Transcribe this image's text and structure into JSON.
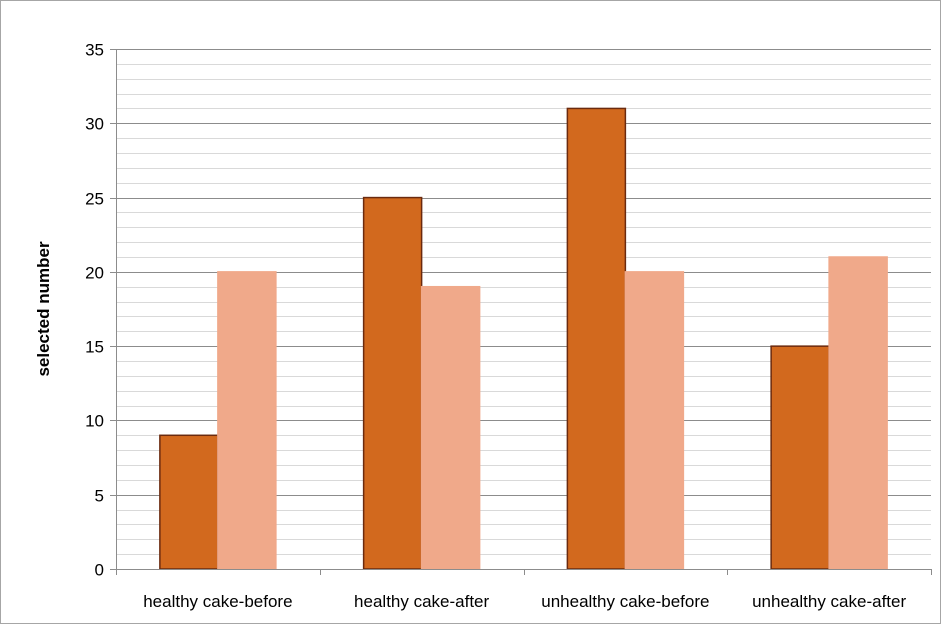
{
  "chart_data": {
    "type": "bar",
    "title": "",
    "xlabel": "",
    "ylabel": "selected number",
    "ylim": [
      0,
      35
    ],
    "yticks": [
      0,
      5,
      10,
      15,
      20,
      25,
      30,
      35
    ],
    "minor_grid_step": 1,
    "grid": true,
    "legend": "none",
    "categories": [
      "healthy cake-before",
      "healthy cake-after",
      "unhealthy cake-before",
      "unhealthy cake-after"
    ],
    "series": [
      {
        "values": [
          9,
          25,
          31,
          15
        ],
        "color": "#d2691e",
        "stroke": "#6b2a0e"
      },
      {
        "values": [
          20,
          19,
          20,
          21
        ],
        "color": "#f0a98a",
        "stroke": "#f0a98a"
      }
    ]
  }
}
